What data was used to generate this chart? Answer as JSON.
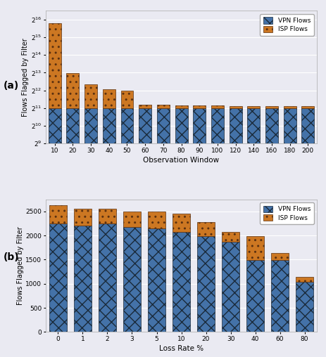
{
  "panel_a": {
    "categories": [
      "10",
      "20",
      "30",
      "40",
      "50",
      "60",
      "70",
      "80",
      "90",
      "100",
      "120",
      "140",
      "160",
      "180",
      "200"
    ],
    "vpn_values": [
      2048,
      2048,
      2048,
      2048,
      2048,
      2048,
      2048,
      2048,
      2048,
      2048,
      2048,
      2048,
      2048,
      2048,
      2048
    ],
    "isp_values": [
      55000,
      6000,
      3200,
      2200,
      2050,
      320,
      260,
      230,
      210,
      200,
      190,
      185,
      180,
      175,
      170
    ],
    "ylabel": "Flows Flagged by Filter",
    "xlabel": "Observation Window"
  },
  "panel_b": {
    "categories": [
      "0",
      "1",
      "2",
      "3",
      "5",
      "10",
      "20",
      "30",
      "40",
      "60",
      "80"
    ],
    "vpn_values": [
      2250,
      2210,
      2250,
      2170,
      2145,
      2070,
      1990,
      1870,
      1490,
      1490,
      1045
    ],
    "isp_values": [
      375,
      350,
      305,
      330,
      355,
      375,
      290,
      210,
      500,
      140,
      90
    ],
    "ylabel": "Flows Flagged by Filter",
    "xlabel": "Loss Rate %",
    "ylim": [
      0,
      2750
    ],
    "yticks": [
      0,
      500,
      1000,
      1500,
      2000,
      2500
    ]
  },
  "vpn_color": "#4472a8",
  "isp_color": "#cc7722",
  "vpn_hatch": "xx",
  "isp_hatch": "..",
  "legend_vpn": "VPN Flows",
  "legend_isp": "ISP Flows",
  "bg_color": "#eaeaf2"
}
